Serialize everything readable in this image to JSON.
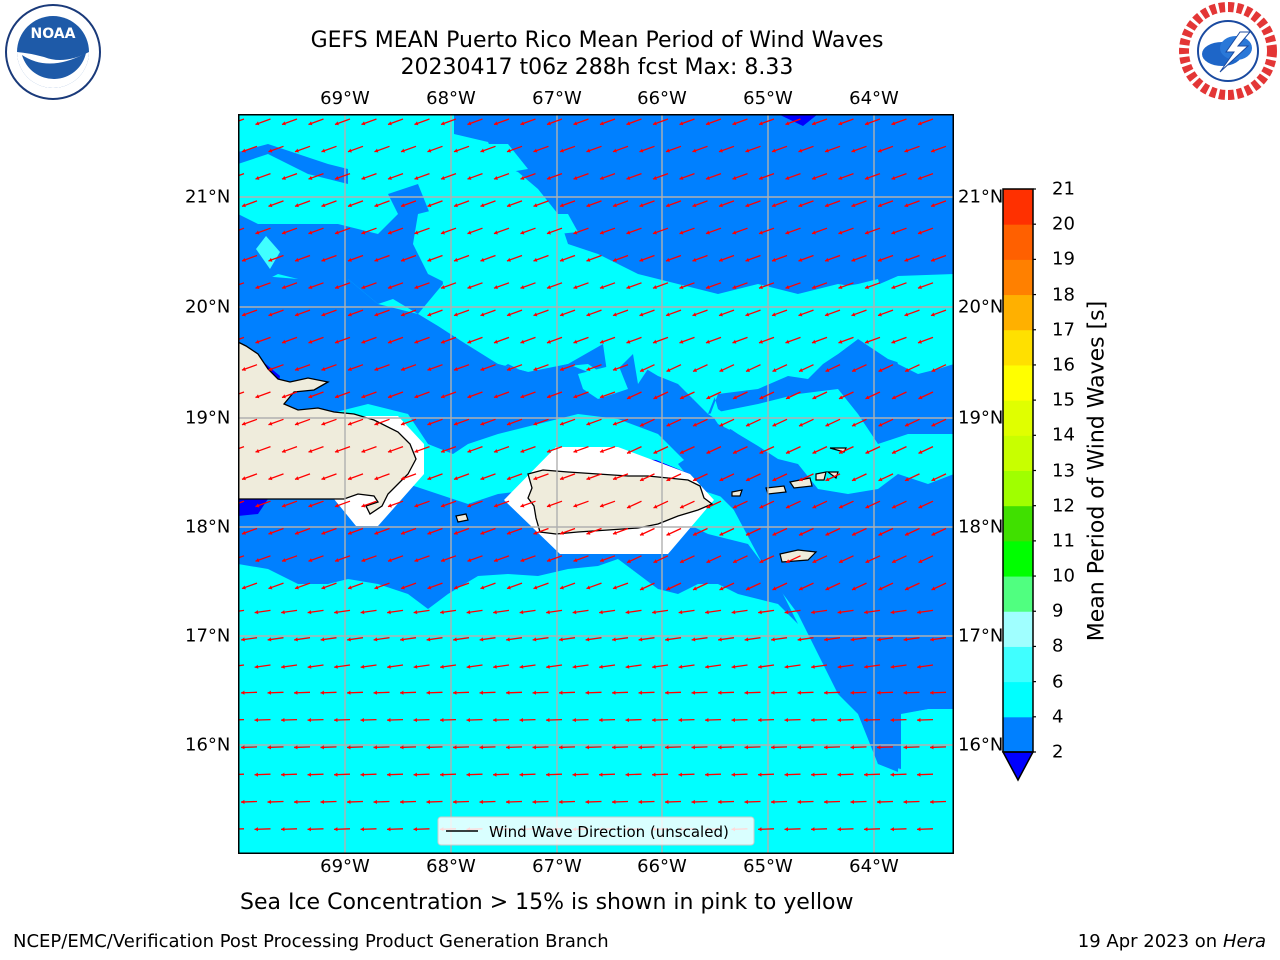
{
  "header": {
    "title_line1": "GEFS MEAN Puerto Rico Mean Period of Wind Waves",
    "title_line2": "20230417 t06z 288h fcst   Max: 8.33"
  },
  "map": {
    "lon_labels": [
      "69°W",
      "68°W",
      "67°W",
      "66°W",
      "65°W",
      "64°W"
    ],
    "lat_labels": [
      "21°N",
      "20°N",
      "19°N",
      "18°N",
      "17°N",
      "16°N"
    ],
    "legend_text": "Wind Wave Direction (unscaled)",
    "colors": {
      "land": "#efecdc",
      "coast": "#000000",
      "band_2_4": "#0080ff",
      "band_4_6": "#00ffff",
      "band_lt2": "#0000ff",
      "arrow": "#ff0000",
      "grid": "#b0b0b0"
    }
  },
  "colorbar": {
    "title": "Mean Period of Wind Waves [s]",
    "tick_labels": [
      "2",
      "4",
      "6",
      "8",
      "9",
      "10",
      "11",
      "12",
      "13",
      "14",
      "15",
      "16",
      "17",
      "18",
      "19",
      "20",
      "21"
    ],
    "colors": [
      "#0080ff",
      "#00ffff",
      "#40ffff",
      "#a0ffff",
      "#50ff80",
      "#00ff00",
      "#40e000",
      "#a0ff00",
      "#c8ff00",
      "#e0ff00",
      "#ffff00",
      "#ffe000",
      "#ffb000",
      "#ff8000",
      "#ff6000",
      "#ff3000",
      "#ff0000"
    ],
    "extend_color": "#0000ff"
  },
  "note": "Sea Ice Concentration > 15% is shown in pink to yellow",
  "footer": {
    "left": "NCEP/EMC/Verification Post Processing Product Generation Branch",
    "date": "19 Apr 2023 on ",
    "machine": "Hera"
  },
  "logos": {
    "noaa_text": "NOAA",
    "nws_text": "NATIONAL WEATHER SERVICE"
  }
}
